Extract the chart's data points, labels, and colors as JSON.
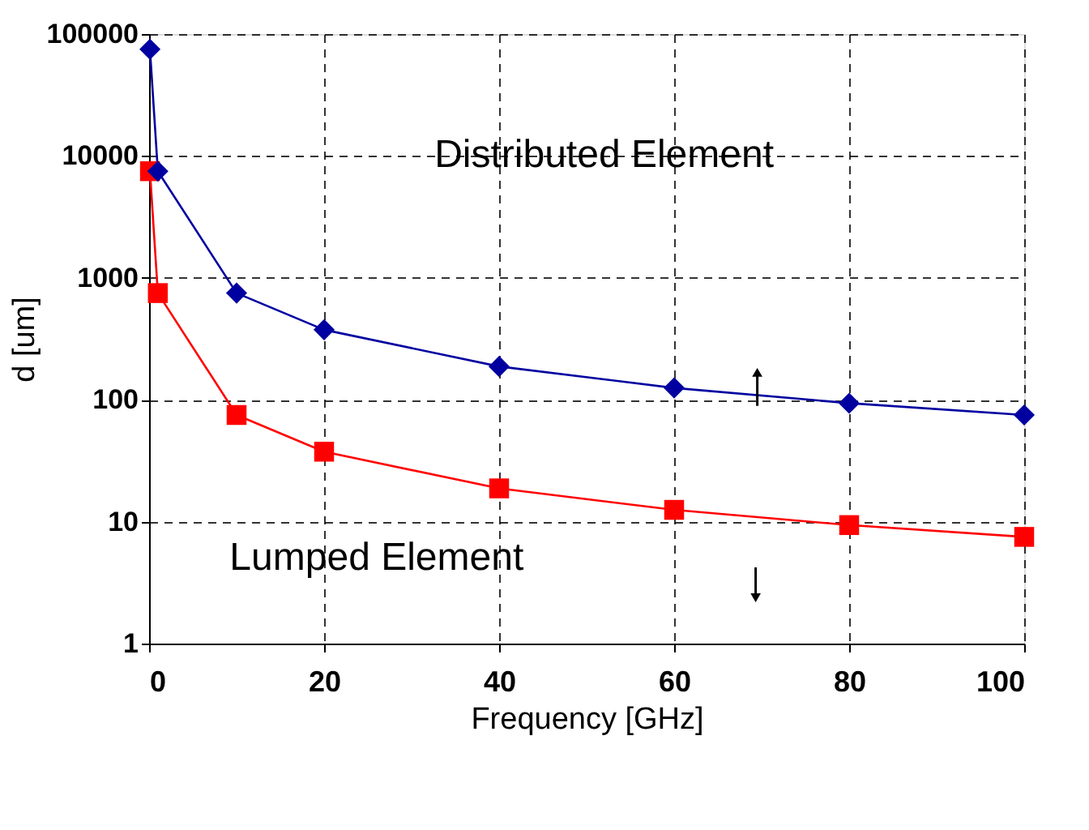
{
  "chart_data": {
    "type": "line",
    "xlabel": "Frequency [GHz]",
    "ylabel": "d [um]",
    "x": [
      0.1,
      1,
      10,
      20,
      40,
      60,
      80,
      100
    ],
    "series": [
      {
        "color": "#0000a0",
        "marker": "diamond",
        "values": [
          75000,
          7500,
          750,
          375,
          187.5,
          125,
          93.75,
          75
        ]
      },
      {
        "color": "#ff0000",
        "marker": "square",
        "values": [
          7500,
          750,
          75,
          37.5,
          18.75,
          12.5,
          9.375,
          7.5
        ]
      }
    ],
    "log": "y",
    "xlim": [
      0,
      100
    ],
    "xticks": [
      0,
      20,
      40,
      60,
      80,
      100
    ],
    "ylim": [
      1,
      100000
    ],
    "yticks": [
      1,
      10,
      100,
      1000,
      10000,
      100000
    ],
    "grid": true,
    "annotations": [
      "Distributed Element",
      "Lumped Element"
    ]
  }
}
